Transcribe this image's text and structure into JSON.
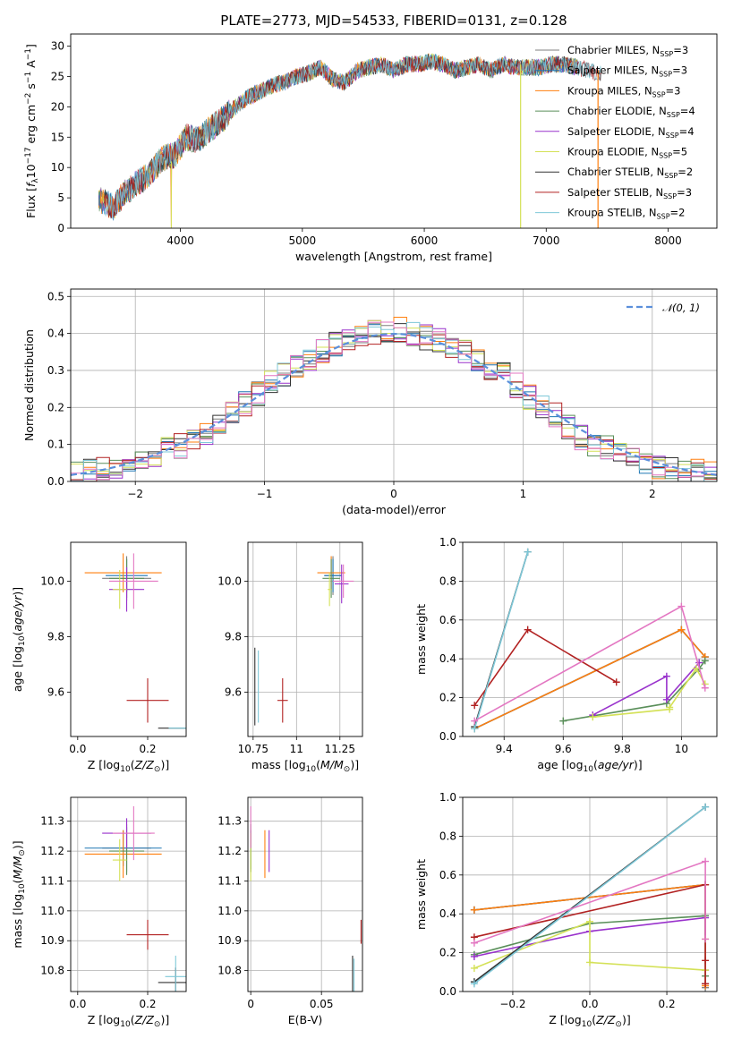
{
  "title": "PLATE=2773, MJD=54533, FIBERID=0131, z=0.128",
  "legend": [
    {
      "name": "Chabrier MILES, N_SSP=3",
      "lab": "Chabrier MILES, N",
      "sub": "SSP",
      "suf": "=3",
      "color": "#7f7f7f"
    },
    {
      "name": "Salpeter MILES, N_SSP=3",
      "lab": "Salpeter MILES, N",
      "sub": "SSP",
      "suf": "=3",
      "color": "#1f77b4"
    },
    {
      "name": "Kroupa MILES, N_SSP=3",
      "lab": "Kroupa MILES, N",
      "sub": "SSP",
      "suf": "=3",
      "color": "#ff7f0e"
    },
    {
      "name": "Chabrier ELODIE, N_SSP=4",
      "lab": "Chabrier ELODIE, N",
      "sub": "SSP",
      "suf": "=4",
      "color": "#5a8f5a"
    },
    {
      "name": "Salpeter ELODIE, N_SSP=4",
      "lab": "Salpeter ELODIE, N",
      "sub": "SSP",
      "suf": "=4",
      "color": "#9932cc"
    },
    {
      "name": "Kroupa ELODIE, N_SSP=5",
      "lab": "Kroupa ELODIE, N",
      "sub": "SSP",
      "suf": "=5",
      "color": "#d4e157"
    },
    {
      "name": "Chabrier STELIB, N_SSP=2",
      "lab": "Chabrier STELIB, N",
      "sub": "SSP",
      "suf": "=2",
      "color": "#333333"
    },
    {
      "name": "Salpeter STELIB, N_SSP=3",
      "lab": "Salpeter STELIB, N",
      "sub": "SSP",
      "suf": "=3",
      "color": "#b22222"
    },
    {
      "name": "Kroupa STELIB, N_SSP=2",
      "lab": "Kroupa STELIB, N",
      "sub": "SSP",
      "suf": "=2",
      "color": "#7ec8d8"
    }
  ],
  "extra_colors": {
    "pink": "#e377c2",
    "normal_curve": "#5b8fdb"
  },
  "chart_data": [
    {
      "id": "spectrum",
      "type": "line",
      "title": "PLATE=2773, MJD=54533, FIBERID=0131, z=0.128",
      "xlabel": "wavelength [Angstrom, rest frame]",
      "ylabel": "Flux [f_λ 10^-17 erg cm^-2 s^-1 A^-1]",
      "xlim": [
        3100,
        8400
      ],
      "ylim": [
        0,
        32
      ],
      "xticks": [
        4000,
        5000,
        6000,
        7000,
        8000
      ],
      "yticks": [
        0,
        5,
        10,
        15,
        20,
        25,
        30
      ],
      "x": [
        3350,
        3450,
        3550,
        3650,
        3750,
        3850,
        3950,
        4050,
        4150,
        4250,
        4350,
        4450,
        4550,
        4650,
        4750,
        4850,
        4950,
        5050,
        5150,
        5250,
        5350,
        5450,
        5550,
        5650,
        5750,
        5850,
        5950,
        6050,
        6150,
        6250,
        6350,
        6450,
        6550,
        6650,
        6750,
        6850,
        6950,
        7050,
        7150,
        7250,
        7350,
        7450
      ],
      "y": [
        4.5,
        3.5,
        6,
        7.5,
        9,
        11.5,
        12,
        15,
        14.5,
        16.5,
        18,
        20,
        21.5,
        22.5,
        23.5,
        24,
        25,
        25.5,
        26.5,
        24.5,
        24,
        26,
        26.5,
        27,
        26,
        27,
        27,
        27.5,
        27,
        26,
        26.5,
        27,
        26,
        27,
        26.5,
        26.5,
        26.5,
        27,
        27,
        26.5,
        26,
        25.5
      ],
      "notes": "All nine fitted model spectra overlap closely"
    },
    {
      "id": "residual_hist",
      "type": "histogram",
      "xlabel": "(data-model)/error",
      "ylabel": "Normed distribution",
      "xlim": [
        -2.5,
        2.5
      ],
      "ylim": [
        0,
        0.52
      ],
      "xticks": [
        -2,
        -1,
        0,
        1,
        2
      ],
      "yticks": [
        0.0,
        0.1,
        0.2,
        0.3,
        0.4,
        0.5
      ],
      "legend": "𝒩(0, 1)",
      "bin_centers": [
        -2.45,
        -2.35,
        -2.25,
        -2.15,
        -2.05,
        -1.95,
        -1.85,
        -1.75,
        -1.65,
        -1.55,
        -1.45,
        -1.35,
        -1.25,
        -1.15,
        -1.05,
        -0.95,
        -0.85,
        -0.75,
        -0.65,
        -0.55,
        -0.45,
        -0.35,
        -0.25,
        -0.15,
        -0.05,
        0.05,
        0.15,
        0.25,
        0.35,
        0.45,
        0.55,
        0.65,
        0.75,
        0.85,
        0.95,
        1.05,
        1.15,
        1.25,
        1.35,
        1.45,
        1.55,
        1.65,
        1.75,
        1.85,
        1.95,
        2.05,
        2.15,
        2.25,
        2.35,
        2.45
      ],
      "density": [
        0.02,
        0.025,
        0.03,
        0.035,
        0.05,
        0.06,
        0.07,
        0.09,
        0.095,
        0.11,
        0.13,
        0.15,
        0.18,
        0.21,
        0.24,
        0.27,
        0.29,
        0.31,
        0.33,
        0.35,
        0.37,
        0.38,
        0.39,
        0.4,
        0.4,
        0.41,
        0.4,
        0.39,
        0.38,
        0.37,
        0.35,
        0.33,
        0.31,
        0.29,
        0.26,
        0.23,
        0.2,
        0.18,
        0.15,
        0.12,
        0.1,
        0.09,
        0.07,
        0.06,
        0.05,
        0.04,
        0.035,
        0.03,
        0.025,
        0.02
      ]
    },
    {
      "id": "Z_age",
      "type": "errorbar",
      "xlabel": "Z [log10(Z/Z⊙)]",
      "ylabel": "age [log10(age/yr)]",
      "xlim": [
        -0.02,
        0.31
      ],
      "ylim": [
        9.44,
        10.14
      ],
      "xticks": [
        0.0,
        0.2
      ],
      "yticks": [
        9.6,
        9.8,
        10.0
      ],
      "points": [
        {
          "s": 0,
          "x": 0.14,
          "y": 10.01,
          "xerr": 0.07,
          "yerr": 0.08
        },
        {
          "s": 1,
          "x": 0.14,
          "y": 10.02,
          "xerr": 0.06,
          "yerr": 0.06
        },
        {
          "s": 2,
          "x": 0.13,
          "y": 10.03,
          "xerr": 0.11,
          "yerr": 0.07
        },
        {
          "s": 3,
          "x": 0.14,
          "y": 10.01,
          "xerr": 0.05,
          "yerr": 0.07
        },
        {
          "s": 4,
          "x": 0.14,
          "y": 9.97,
          "xerr": 0.05,
          "yerr": 0.08
        },
        {
          "s": 5,
          "x": 0.12,
          "y": 9.97,
          "xerr": 0.02,
          "yerr": 0.07
        },
        {
          "s": 6,
          "x": 0.28,
          "y": 9.47,
          "xerr": 0.05,
          "yerr": 0.0
        },
        {
          "s": 7,
          "x": 0.2,
          "y": 9.57,
          "xerr": 0.06,
          "yerr": 0.08
        },
        {
          "s": 8,
          "x": 0.29,
          "y": 9.47,
          "xerr": 0.03,
          "yerr": 0.0
        },
        {
          "s": "pink",
          "x": 0.16,
          "y": 10.0,
          "xerr": 0.07,
          "yerr": 0.1
        }
      ]
    },
    {
      "id": "mass_age",
      "type": "errorbar",
      "xlabel": "mass [log10(M/M⊙)]",
      "ylabel": "",
      "xlim": [
        10.72,
        11.38
      ],
      "ylim": [
        9.44,
        10.14
      ],
      "xticks": [
        10.75,
        11.0,
        11.25
      ],
      "yticks": [
        9.6,
        9.8,
        10.0
      ],
      "points": [
        {
          "s": 0,
          "x": 11.21,
          "y": 10.02,
          "xerr": 0.05,
          "yerr": 0.07
        },
        {
          "s": 1,
          "x": 11.21,
          "y": 10.02,
          "xerr": 0.05,
          "yerr": 0.06
        },
        {
          "s": 2,
          "x": 11.2,
          "y": 10.03,
          "xerr": 0.08,
          "yerr": 0.06
        },
        {
          "s": 3,
          "x": 11.2,
          "y": 10.01,
          "xerr": 0.05,
          "yerr": 0.07
        },
        {
          "s": 4,
          "x": 11.26,
          "y": 9.99,
          "xerr": 0.04,
          "yerr": 0.07
        },
        {
          "s": 5,
          "x": 11.19,
          "y": 9.97,
          "xerr": 0.01,
          "yerr": 0.06
        },
        {
          "s": 6,
          "x": 10.76,
          "y": 9.62,
          "xerr": 0.0,
          "yerr": 0.14
        },
        {
          "s": 7,
          "x": 10.92,
          "y": 9.57,
          "xerr": 0.03,
          "yerr": 0.08
        },
        {
          "s": 8,
          "x": 10.78,
          "y": 9.62,
          "xerr": 0.0,
          "yerr": 0.13
        },
        {
          "s": "pink",
          "x": 11.27,
          "y": 10.0,
          "xerr": 0.06,
          "yerr": 0.06
        }
      ]
    },
    {
      "id": "age_weight",
      "type": "line",
      "xlabel": "age [log10(age/yr)]",
      "ylabel": "mass weight",
      "xlim": [
        9.26,
        10.12
      ],
      "ylim": [
        0,
        1
      ],
      "xticks": [
        9.4,
        9.6,
        9.8,
        10.0
      ],
      "yticks": [
        0.0,
        0.2,
        0.4,
        0.6,
        0.8,
        1.0
      ],
      "series": [
        {
          "s": 0,
          "x": [
            9.3,
            10.0,
            10.08
          ],
          "y": [
            0.04,
            0.55,
            0.41
          ]
        },
        {
          "s": 1,
          "x": [
            9.3,
            10.0,
            10.08
          ],
          "y": [
            0.04,
            0.55,
            0.41
          ]
        },
        {
          "s": 2,
          "x": [
            9.3,
            10.0,
            10.08
          ],
          "y": [
            0.04,
            0.55,
            0.41
          ]
        },
        {
          "s": 3,
          "x": [
            9.6,
            9.95,
            10.06,
            10.08
          ],
          "y": [
            0.08,
            0.17,
            0.35,
            0.39
          ]
        },
        {
          "s": 4,
          "x": [
            9.7,
            9.95,
            9.95,
            10.06
          ],
          "y": [
            0.11,
            0.31,
            0.19,
            0.38
          ]
        },
        {
          "s": 5,
          "x": [
            9.7,
            9.96,
            9.96,
            10.05,
            10.08
          ],
          "y": [
            0.1,
            0.14,
            0.15,
            0.35,
            0.27
          ]
        },
        {
          "s": 6,
          "x": [
            9.3,
            9.48
          ],
          "y": [
            0.05,
            0.95
          ]
        },
        {
          "s": 7,
          "x": [
            9.3,
            9.48,
            9.78
          ],
          "y": [
            0.16,
            0.55,
            0.28
          ]
        },
        {
          "s": 8,
          "x": [
            9.3,
            9.48
          ],
          "y": [
            0.04,
            0.95
          ]
        },
        {
          "s": "pink",
          "x": [
            9.3,
            10.0,
            10.08
          ],
          "y": [
            0.08,
            0.67,
            0.25
          ]
        }
      ]
    },
    {
      "id": "Z_mass",
      "type": "errorbar",
      "xlabel": "Z [log10(Z/Z⊙)]",
      "ylabel": "mass [log10(M/M⊙)]",
      "xlim": [
        -0.02,
        0.31
      ],
      "ylim": [
        10.73,
        11.38
      ],
      "xticks": [
        0.0,
        0.2
      ],
      "yticks": [
        10.8,
        10.9,
        11.0,
        11.1,
        11.2,
        11.3
      ],
      "points": [
        {
          "s": 0,
          "x": 0.14,
          "y": 11.21,
          "xerr": 0.07,
          "yerr": 0.08
        },
        {
          "s": 1,
          "x": 0.13,
          "y": 11.21,
          "xerr": 0.11,
          "yerr": 0.06
        },
        {
          "s": 2,
          "x": 0.13,
          "y": 11.19,
          "xerr": 0.11,
          "yerr": 0.08
        },
        {
          "s": 3,
          "x": 0.14,
          "y": 11.2,
          "xerr": 0.05,
          "yerr": 0.08
        },
        {
          "s": 4,
          "x": 0.14,
          "y": 11.26,
          "xerr": 0.07,
          "yerr": 0.05
        },
        {
          "s": 5,
          "x": 0.12,
          "y": 11.17,
          "xerr": 0.02,
          "yerr": 0.07
        },
        {
          "s": 6,
          "x": 0.28,
          "y": 10.76,
          "xerr": 0.05,
          "yerr": 0.05
        },
        {
          "s": 7,
          "x": 0.2,
          "y": 10.92,
          "xerr": 0.06,
          "yerr": 0.05
        },
        {
          "s": 8,
          "x": 0.28,
          "y": 10.78,
          "xerr": 0.03,
          "yerr": 0.07
        },
        {
          "s": "pink",
          "x": 0.16,
          "y": 11.26,
          "xerr": 0.06,
          "yerr": 0.09
        }
      ]
    },
    {
      "id": "ebv_mass",
      "type": "errorbar",
      "xlabel": "E(B-V)",
      "ylabel": "",
      "xlim": [
        -0.002,
        0.079
      ],
      "ylim": [
        10.73,
        11.38
      ],
      "xticks": [
        0.0,
        0.05
      ],
      "yticks": [
        10.8,
        10.9,
        11.0,
        11.1,
        11.2,
        11.3
      ],
      "points": [
        {
          "s": 0,
          "x": 0.0,
          "y": 11.21,
          "xerr": 0.0,
          "yerr": 0.08
        },
        {
          "s": 1,
          "x": 0.0,
          "y": 11.2,
          "xerr": 0.0,
          "yerr": 0.06
        },
        {
          "s": 2,
          "x": 0.01,
          "y": 11.19,
          "xerr": 0.0,
          "yerr": 0.08
        },
        {
          "s": 3,
          "x": 0.0,
          "y": 11.2,
          "xerr": 0.0,
          "yerr": 0.07
        },
        {
          "s": 4,
          "x": 0.013,
          "y": 11.2,
          "xerr": 0.0,
          "yerr": 0.07
        },
        {
          "s": 5,
          "x": 0.0,
          "y": 11.18,
          "xerr": 0.0,
          "yerr": 0.08
        },
        {
          "s": 6,
          "x": 0.072,
          "y": 10.78,
          "xerr": 0.0,
          "yerr": 0.07
        },
        {
          "s": 7,
          "x": 0.078,
          "y": 10.93,
          "xerr": 0.0,
          "yerr": 0.04
        },
        {
          "s": 8,
          "x": 0.073,
          "y": 10.78,
          "xerr": 0.0,
          "yerr": 0.06
        },
        {
          "s": "pink",
          "x": 0.0,
          "y": 11.28,
          "xerr": 0.0,
          "yerr": 0.07
        }
      ]
    },
    {
      "id": "Z_weight",
      "type": "line",
      "xlabel": "Z [log10(Z/Z⊙)]",
      "ylabel": "mass weight",
      "xlim": [
        -0.33,
        0.33
      ],
      "ylim": [
        0,
        1
      ],
      "xticks": [
        -0.2,
        0.0,
        0.2
      ],
      "yticks": [
        0.0,
        0.2,
        0.4,
        0.6,
        0.8,
        1.0
      ],
      "series": [
        {
          "s": 0,
          "x": [
            -0.3,
            0.3,
            0.3
          ],
          "y": [
            0.42,
            0.55,
            0.02
          ]
        },
        {
          "s": 1,
          "x": [
            -0.3,
            0.3,
            0.3
          ],
          "y": [
            0.42,
            0.55,
            0.04
          ]
        },
        {
          "s": 2,
          "x": [
            -0.3,
            0.3,
            0.3
          ],
          "y": [
            0.42,
            0.55,
            0.03
          ]
        },
        {
          "s": 3,
          "x": [
            -0.3,
            0.0,
            0.3,
            0.3
          ],
          "y": [
            0.19,
            0.35,
            0.39,
            0.08
          ]
        },
        {
          "s": 4,
          "x": [
            -0.3,
            0.0,
            0.3,
            0.3
          ],
          "y": [
            0.18,
            0.31,
            0.38,
            0.11
          ]
        },
        {
          "s": 5,
          "x": [
            -0.3,
            0.0,
            0.0,
            0.3,
            0.3
          ],
          "y": [
            0.12,
            0.36,
            0.15,
            0.11,
            0.27
          ]
        },
        {
          "s": 6,
          "x": [
            -0.3,
            0.3
          ],
          "y": [
            0.05,
            0.95
          ]
        },
        {
          "s": 7,
          "x": [
            -0.3,
            0.3,
            0.3,
            0.3
          ],
          "y": [
            0.28,
            0.55,
            0.16,
            0.04
          ]
        },
        {
          "s": 8,
          "x": [
            -0.3,
            0.3
          ],
          "y": [
            0.04,
            0.95
          ]
        },
        {
          "s": "pink",
          "x": [
            -0.3,
            0.3,
            0.3
          ],
          "y": [
            0.25,
            0.67,
            0.27
          ]
        }
      ]
    }
  ]
}
